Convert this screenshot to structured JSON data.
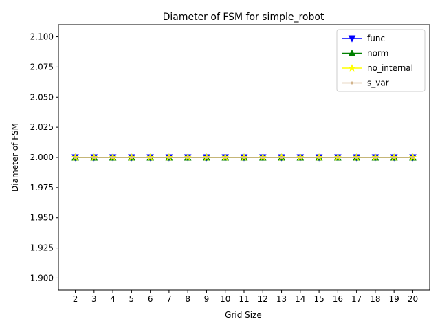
{
  "chart_data": {
    "type": "line",
    "title": "Diameter of FSM for simple_robot",
    "xlabel": "Grid Size",
    "ylabel": "Diameter of FSM",
    "x": [
      2,
      3,
      4,
      5,
      6,
      7,
      8,
      9,
      10,
      11,
      12,
      13,
      14,
      15,
      16,
      17,
      18,
      19,
      20
    ],
    "ylim": [
      1.89,
      2.11
    ],
    "yticks": [
      "1.900",
      "1.925",
      "1.950",
      "1.975",
      "2.000",
      "2.025",
      "2.050",
      "2.075",
      "2.100"
    ],
    "grid": false,
    "legend_position": "upper right",
    "series": [
      {
        "name": "func",
        "color": "#0000ff",
        "marker": "triangle-down",
        "values": [
          2,
          2,
          2,
          2,
          2,
          2,
          2,
          2,
          2,
          2,
          2,
          2,
          2,
          2,
          2,
          2,
          2,
          2,
          2
        ]
      },
      {
        "name": "norm",
        "color": "#008000",
        "marker": "triangle-up",
        "values": [
          2,
          2,
          2,
          2,
          2,
          2,
          2,
          2,
          2,
          2,
          2,
          2,
          2,
          2,
          2,
          2,
          2,
          2,
          2
        ]
      },
      {
        "name": "no_internal",
        "color": "#ffff00",
        "marker": "star",
        "values": [
          2,
          2,
          2,
          2,
          2,
          2,
          2,
          2,
          2,
          2,
          2,
          2,
          2,
          2,
          2,
          2,
          2,
          2,
          2
        ]
      },
      {
        "name": "s_var",
        "color": "#d2b48c",
        "marker": "point",
        "values": [
          2,
          2,
          2,
          2,
          2,
          2,
          2,
          2,
          2,
          2,
          2,
          2,
          2,
          2,
          2,
          2,
          2,
          2,
          2
        ]
      }
    ]
  }
}
